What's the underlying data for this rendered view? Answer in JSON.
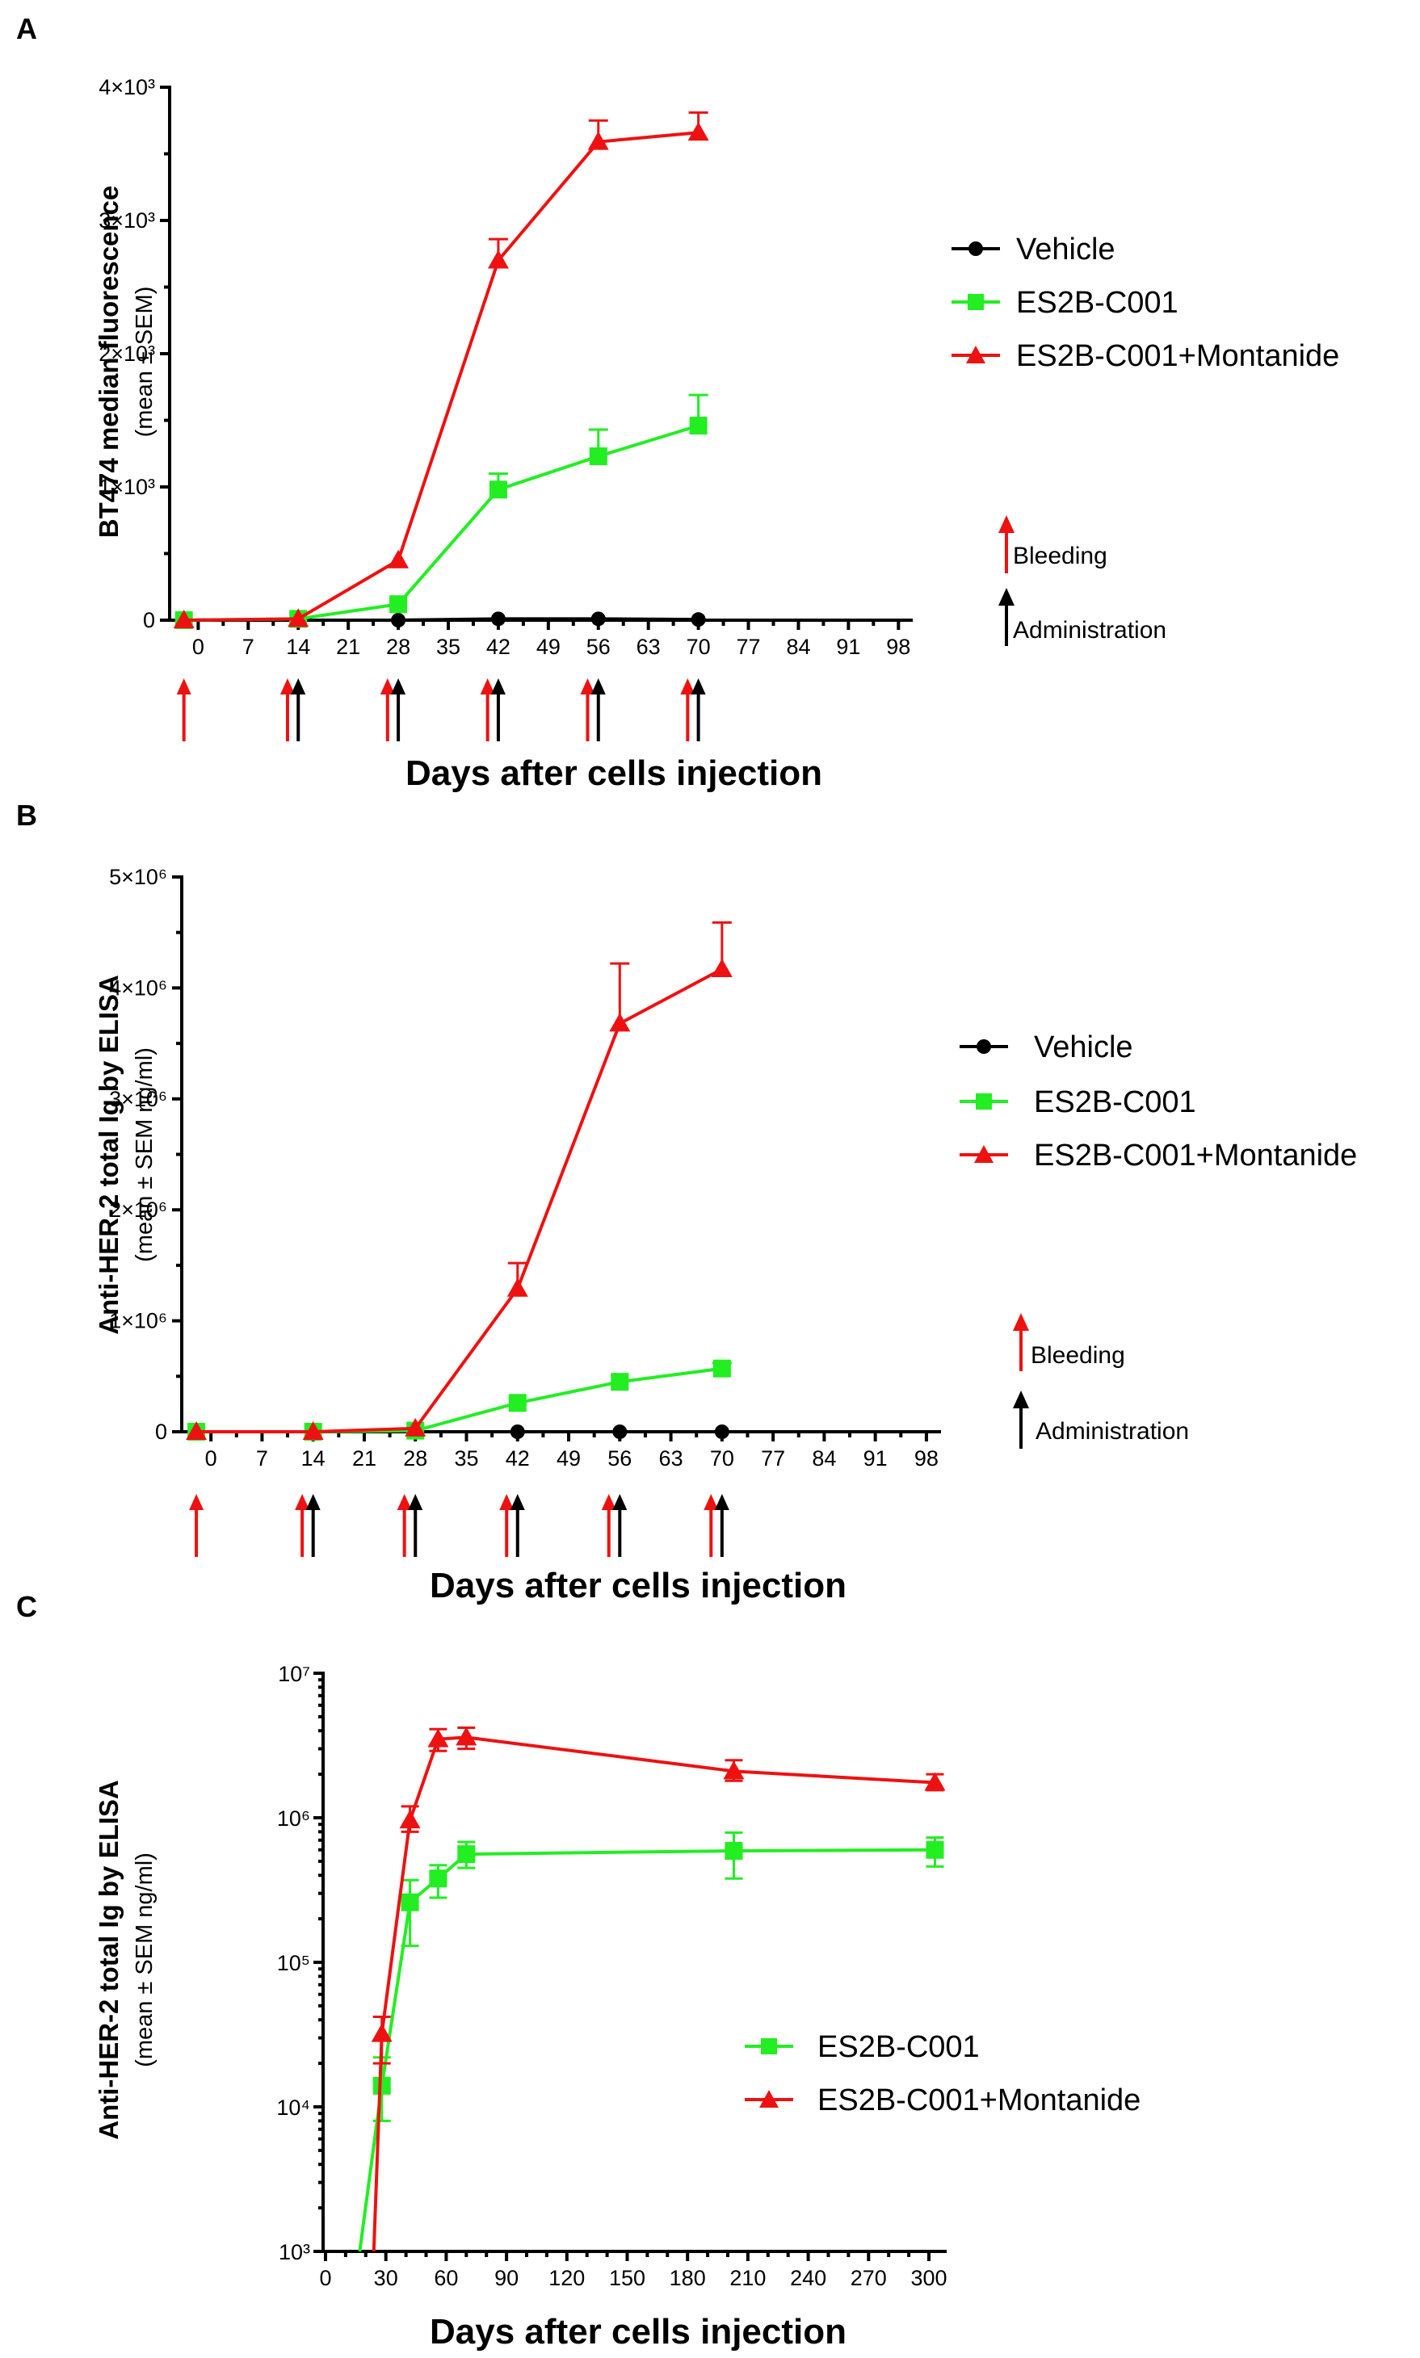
{
  "colors": {
    "vehicle": "#000000",
    "es2b": "#22ee22",
    "montanide": "#ee1111",
    "bleeding": "#ee1111",
    "administration": "#000000"
  },
  "panels": {
    "A": {
      "label": "A",
      "ylabel": "BT474 median fluorescence",
      "ysub": "(mean ± SEM)",
      "xlabel": "Days after cells injection"
    },
    "B": {
      "label": "B",
      "ylabel": "Anti-HER-2 total Ig by  ELISA",
      "ysub": "(mean ± SEM ng/ml)",
      "xlabel": "Days after cells injection"
    },
    "C": {
      "label": "C",
      "ylabel": "Anti-HER-2 total Ig by  ELISA",
      "ysub": "(mean ± SEM ng/ml)",
      "xlabel": "Days after cells injection"
    }
  },
  "legend_markers": {
    "bleeding": "Bleeding",
    "administration": "Administration"
  },
  "chart_data": [
    {
      "id": "A",
      "type": "line",
      "title": "",
      "xlabel": "Days after cells injection",
      "ylabel": "BT474 median fluorescence (mean ± SEM)",
      "xlim": [
        -4,
        100
      ],
      "ylim": [
        0,
        4000
      ],
      "xticks": [
        0,
        7,
        14,
        21,
        28,
        35,
        42,
        49,
        56,
        63,
        70,
        77,
        84,
        91,
        98
      ],
      "yticks": [
        {
          "v": 0,
          "label": "0"
        },
        {
          "v": 1000,
          "label": "1×10³"
        },
        {
          "v": 2000,
          "label": "2×10³"
        },
        {
          "v": 3000,
          "label": "3×10³"
        },
        {
          "v": 4000,
          "label": "4×10³"
        }
      ],
      "series": [
        {
          "name": "Vehicle",
          "marker": "circle",
          "x": [
            -2,
            14,
            28,
            42,
            56,
            70
          ],
          "y": [
            0,
            0,
            0,
            10,
            10,
            5
          ],
          "err": [
            0,
            0,
            0,
            0,
            0,
            0
          ]
        },
        {
          "name": "ES2B-C001",
          "marker": "square",
          "x": [
            -2,
            14,
            28,
            42,
            56,
            70
          ],
          "y": [
            0,
            10,
            120,
            980,
            1230,
            1460
          ],
          "err": [
            0,
            0,
            0,
            120,
            200,
            230
          ]
        },
        {
          "name": "ES2B-C001+Montanide",
          "marker": "triangle",
          "x": [
            -2,
            14,
            28,
            42,
            56,
            70
          ],
          "y": [
            0,
            10,
            450,
            2700,
            3590,
            3660
          ],
          "err": [
            0,
            0,
            0,
            160,
            160,
            150
          ]
        }
      ],
      "bleeding_days": [
        -2,
        12.5,
        26.5,
        40.5,
        54.5,
        68.5
      ],
      "administration_days": [
        14,
        28,
        42,
        56,
        70
      ]
    },
    {
      "id": "B",
      "type": "line",
      "title": "",
      "xlabel": "Days after cells injection",
      "ylabel": "Anti-HER-2 total Ig by ELISA (mean ± SEM ng/ml)",
      "xlim": [
        -4,
        100
      ],
      "ylim": [
        0,
        5000000
      ],
      "xticks": [
        0,
        7,
        14,
        21,
        28,
        35,
        42,
        49,
        56,
        63,
        70,
        77,
        84,
        91,
        98
      ],
      "yticks": [
        {
          "v": 0,
          "label": "0"
        },
        {
          "v": 1000000,
          "label": "1×10⁶"
        },
        {
          "v": 2000000,
          "label": "2×10⁶"
        },
        {
          "v": 3000000,
          "label": "3×10⁶"
        },
        {
          "v": 4000000,
          "label": "4×10⁶"
        },
        {
          "v": 5000000,
          "label": "5×10⁶"
        }
      ],
      "series": [
        {
          "name": "Vehicle",
          "marker": "circle",
          "x": [
            -2,
            14,
            28,
            42,
            56,
            70
          ],
          "y": [
            0,
            0,
            0,
            0,
            0,
            0
          ],
          "err": [
            0,
            0,
            0,
            0,
            0,
            0
          ]
        },
        {
          "name": "ES2B-C001",
          "marker": "square",
          "x": [
            -2,
            14,
            28,
            42,
            56,
            70
          ],
          "y": [
            0,
            0,
            10000,
            260000,
            450000,
            570000
          ],
          "err": [
            0,
            0,
            0,
            0,
            0,
            50000
          ]
        },
        {
          "name": "ES2B-C001+Montanide",
          "marker": "triangle",
          "x": [
            -2,
            14,
            28,
            42,
            56,
            70
          ],
          "y": [
            0,
            0,
            30000,
            1290000,
            3680000,
            4170000
          ],
          "err": [
            0,
            0,
            0,
            230000,
            540000,
            420000
          ]
        }
      ],
      "bleeding_days": [
        -2,
        12.5,
        26.5,
        40.5,
        54.5,
        68.5
      ],
      "administration_days": [
        14,
        28,
        42,
        56,
        70
      ]
    },
    {
      "id": "C",
      "type": "line",
      "title": "",
      "xlabel": "Days after cells injection",
      "ylabel": "Anti-HER-2 total Ig by ELISA (mean ± SEM ng/ml)",
      "xscale": "linear",
      "yscale": "log",
      "xlim": [
        -5,
        310
      ],
      "ylim": [
        1000,
        10000000
      ],
      "xticks": [
        0,
        30,
        60,
        90,
        120,
        150,
        180,
        210,
        240,
        270,
        300
      ],
      "yticks": [
        {
          "v": 1000,
          "label": "10³"
        },
        {
          "v": 10000,
          "label": "10⁴"
        },
        {
          "v": 100000,
          "label": "10⁵"
        },
        {
          "v": 1000000,
          "label": "10⁶"
        },
        {
          "v": 10000000,
          "label": "10⁷"
        }
      ],
      "series": [
        {
          "name": "ES2B-C001",
          "marker": "square",
          "x": [
            17,
            28,
            42,
            56,
            70,
            203,
            303
          ],
          "y": [
            1000,
            14000,
            260000,
            380000,
            560000,
            590000,
            600000
          ],
          "err_lo": [
            0,
            8000,
            130000,
            280000,
            450000,
            380000,
            460000
          ],
          "err_hi": [
            0,
            22000,
            370000,
            470000,
            680000,
            790000,
            730000
          ],
          "marker_from": 1
        },
        {
          "name": "ES2B-C001+Montanide",
          "marker": "triangle",
          "x": [
            24,
            28,
            42,
            56,
            70,
            203,
            303
          ],
          "y": [
            1000,
            32000,
            960000,
            3500000,
            3600000,
            2100000,
            1750000
          ],
          "err_lo": [
            0,
            20000,
            800000,
            2900000,
            3000000,
            1800000,
            1550000
          ],
          "err_hi": [
            0,
            42000,
            1200000,
            4100000,
            4200000,
            2500000,
            2000000
          ],
          "marker_from": 1
        }
      ]
    }
  ]
}
